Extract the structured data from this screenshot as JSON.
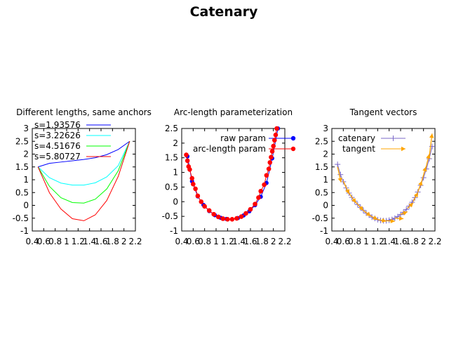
{
  "figure": {
    "title": "Catenary"
  },
  "chart_data": [
    {
      "type": "line",
      "title": "Different lengths, same anchors",
      "xlim": [
        0.4,
        2.2
      ],
      "ylim": [
        -1,
        3
      ],
      "x_ticks": [
        "0.4",
        "0.6",
        "0.8",
        "1",
        "1.2",
        "1.4",
        "1.6",
        "1.8",
        "2",
        "2.2"
      ],
      "y_ticks": [
        "-1",
        "-0.5",
        "0",
        "0.5",
        "1",
        "1.5",
        "2",
        "2.5",
        "3"
      ],
      "grid": false,
      "legend_position": "top-left",
      "anchors": [
        [
          0.5,
          1.5
        ],
        [
          2.1,
          2.5
        ]
      ],
      "series": [
        {
          "name": "s=1.93576",
          "color": "#0000ff",
          "points": [
            [
              0.5,
              1.5
            ],
            [
              0.7,
              1.64
            ],
            [
              0.9,
              1.69
            ],
            [
              1.1,
              1.74
            ],
            [
              1.3,
              1.79
            ],
            [
              1.5,
              1.86
            ],
            [
              1.7,
              1.98
            ],
            [
              1.9,
              2.18
            ],
            [
              2.1,
              2.5
            ]
          ]
        },
        {
          "name": "s=3.22626",
          "color": "#00ffff",
          "points": [
            [
              0.5,
              1.5
            ],
            [
              0.7,
              1.08
            ],
            [
              0.9,
              0.87
            ],
            [
              1.1,
              0.79
            ],
            [
              1.3,
              0.79
            ],
            [
              1.5,
              0.88
            ],
            [
              1.7,
              1.11
            ],
            [
              1.9,
              1.55
            ],
            [
              2.1,
              2.5
            ]
          ]
        },
        {
          "name": "s=4.51676",
          "color": "#00ff00",
          "points": [
            [
              0.5,
              1.5
            ],
            [
              0.7,
              0.74
            ],
            [
              0.9,
              0.3
            ],
            [
              1.1,
              0.11
            ],
            [
              1.3,
              0.09
            ],
            [
              1.5,
              0.24
            ],
            [
              1.7,
              0.64
            ],
            [
              1.9,
              1.35
            ],
            [
              2.1,
              2.5
            ]
          ]
        },
        {
          "name": "s=5.80727",
          "color": "#ff0000",
          "points": [
            [
              0.5,
              1.5
            ],
            [
              0.7,
              0.49
            ],
            [
              0.9,
              -0.14
            ],
            [
              1.1,
              -0.52
            ],
            [
              1.3,
              -0.6
            ],
            [
              1.5,
              -0.37
            ],
            [
              1.7,
              0.19
            ],
            [
              1.9,
              1.13
            ],
            [
              2.1,
              2.5
            ]
          ]
        }
      ]
    },
    {
      "type": "scatter",
      "title": "Arc-length parameterization",
      "xlim": [
        0.4,
        2.2
      ],
      "ylim": [
        -1,
        2.5
      ],
      "x_ticks": [
        "0.4",
        "0.6",
        "0.8",
        "1",
        "1.2",
        "1.4",
        "1.6",
        "1.8",
        "2",
        "2.2"
      ],
      "y_ticks": [
        "-1",
        "-0.5",
        "0",
        "0.5",
        "1",
        "1.5",
        "2",
        "2.5"
      ],
      "grid": false,
      "legend_position": "top-right",
      "series": [
        {
          "name": "raw param",
          "color": "#0000ff",
          "points": [
            [
              0.5,
              1.55
            ],
            [
              0.58,
              0.7
            ],
            [
              0.68,
              0.18
            ],
            [
              0.78,
              -0.11
            ],
            [
              0.88,
              -0.32
            ],
            [
              0.98,
              -0.46
            ],
            [
              1.08,
              -0.55
            ],
            [
              1.18,
              -0.59
            ],
            [
              1.28,
              -0.6
            ],
            [
              1.38,
              -0.56
            ],
            [
              1.48,
              -0.47
            ],
            [
              1.58,
              -0.33
            ],
            [
              1.68,
              -0.12
            ],
            [
              1.78,
              0.17
            ],
            [
              1.88,
              0.64
            ],
            [
              1.98,
              1.48
            ],
            [
              2.08,
              2.5
            ]
          ]
        },
        {
          "name": "arc-length param",
          "color": "#ff0000",
          "points": [
            [
              0.48,
              1.6
            ],
            [
              0.5,
              1.4
            ],
            [
              0.52,
              1.2
            ],
            [
              0.54,
              1.1
            ],
            [
              0.58,
              0.8
            ],
            [
              0.6,
              0.6
            ],
            [
              0.64,
              0.44
            ],
            [
              0.68,
              0.2
            ],
            [
              0.74,
              0.0
            ],
            [
              0.8,
              -0.16
            ],
            [
              0.88,
              -0.3
            ],
            [
              0.96,
              -0.43
            ],
            [
              1.04,
              -0.52
            ],
            [
              1.12,
              -0.58
            ],
            [
              1.2,
              -0.6
            ],
            [
              1.28,
              -0.6
            ],
            [
              1.36,
              -0.57
            ],
            [
              1.44,
              -0.51
            ],
            [
              1.52,
              -0.4
            ],
            [
              1.6,
              -0.26
            ],
            [
              1.68,
              -0.08
            ],
            [
              1.74,
              0.14
            ],
            [
              1.78,
              0.36
            ],
            [
              1.84,
              0.58
            ],
            [
              1.88,
              0.9
            ],
            [
              1.92,
              1.12
            ],
            [
              1.94,
              1.34
            ],
            [
              1.96,
              1.52
            ],
            [
              1.98,
              1.72
            ],
            [
              2.0,
              1.9
            ],
            [
              2.02,
              2.1
            ],
            [
              2.04,
              2.28
            ],
            [
              2.06,
              2.5
            ]
          ]
        }
      ]
    },
    {
      "type": "line",
      "title": "Tangent vectors",
      "xlim": [
        0.4,
        2.2
      ],
      "ylim": [
        -1,
        3
      ],
      "x_ticks": [
        "0.4",
        "0.6",
        "0.8",
        "1",
        "1.2",
        "1.4",
        "1.6",
        "1.8",
        "2",
        "2.2"
      ],
      "y_ticks": [
        "-1",
        "-0.5",
        "0",
        "0.5",
        "1",
        "1.5",
        "2",
        "2.5",
        "3"
      ],
      "grid": false,
      "legend_position": "top-left",
      "series": [
        {
          "name": "catenary",
          "color": "#7b68c8",
          "points": [
            [
              0.5,
              1.6
            ],
            [
              0.55,
              1.2
            ],
            [
              0.6,
              0.92
            ],
            [
              0.65,
              0.68
            ],
            [
              0.7,
              0.48
            ],
            [
              0.75,
              0.31
            ],
            [
              0.8,
              0.16
            ],
            [
              0.85,
              0.03
            ],
            [
              0.9,
              -0.08
            ],
            [
              0.95,
              -0.2
            ],
            [
              1.0,
              -0.3
            ],
            [
              1.05,
              -0.38
            ],
            [
              1.1,
              -0.46
            ],
            [
              1.15,
              -0.51
            ],
            [
              1.2,
              -0.56
            ],
            [
              1.25,
              -0.59
            ],
            [
              1.3,
              -0.6
            ],
            [
              1.35,
              -0.6
            ],
            [
              1.4,
              -0.58
            ],
            [
              1.45,
              -0.55
            ],
            [
              1.5,
              -0.5
            ],
            [
              1.55,
              -0.44
            ],
            [
              1.6,
              -0.36
            ],
            [
              1.65,
              -0.27
            ],
            [
              1.7,
              -0.16
            ],
            [
              1.75,
              -0.03
            ],
            [
              1.8,
              0.12
            ],
            [
              1.85,
              0.3
            ],
            [
              1.9,
              0.52
            ],
            [
              1.95,
              0.78
            ],
            [
              2.0,
              1.08
            ],
            [
              2.05,
              1.42
            ],
            [
              2.1,
              1.82
            ],
            [
              2.15,
              2.3
            ]
          ]
        },
        {
          "name": "tangent",
          "color": "#ffa500",
          "vectors": [
            [
              0.5,
              1.5,
              0.56,
              0.9
            ],
            [
              0.6,
              0.95,
              0.7,
              0.45
            ],
            [
              0.7,
              0.48,
              0.82,
              0.1
            ],
            [
              0.82,
              0.12,
              0.95,
              -0.2
            ],
            [
              0.95,
              -0.2,
              1.08,
              -0.42
            ],
            [
              1.08,
              -0.42,
              1.2,
              -0.55
            ],
            [
              1.2,
              -0.55,
              1.35,
              -0.62
            ],
            [
              1.35,
              -0.6,
              1.5,
              -0.62
            ],
            [
              1.5,
              -0.5,
              1.65,
              -0.52
            ],
            [
              1.6,
              -0.35,
              1.72,
              -0.25
            ],
            [
              1.72,
              -0.12,
              1.82,
              0.1
            ],
            [
              1.82,
              0.15,
              1.9,
              0.5
            ],
            [
              1.9,
              0.52,
              1.97,
              0.95
            ],
            [
              1.97,
              0.95,
              2.04,
              1.5
            ],
            [
              2.04,
              1.45,
              2.1,
              2.0
            ],
            [
              2.1,
              1.9,
              2.15,
              2.8
            ]
          ]
        }
      ]
    }
  ]
}
